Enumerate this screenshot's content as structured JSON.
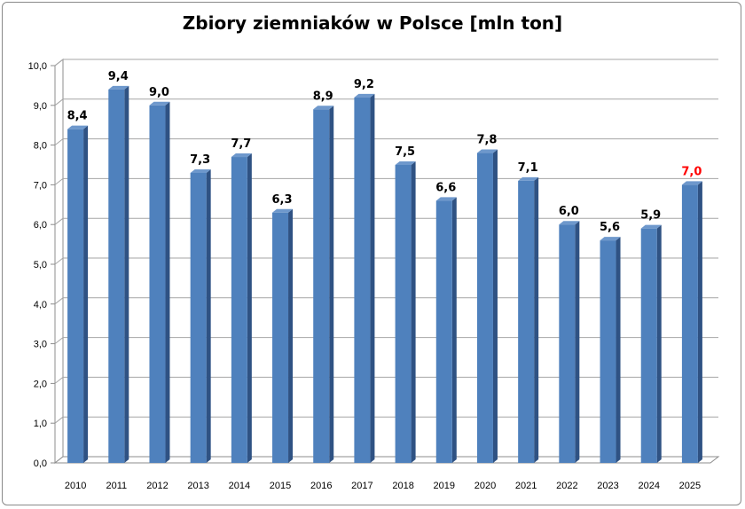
{
  "chart_data": {
    "type": "bar",
    "title": "Zbiory ziemniaków w Polsce [mln ton]",
    "xlabel": "",
    "ylabel": "",
    "categories": [
      "2010",
      "2011",
      "2012",
      "2013",
      "2014",
      "2015",
      "2016",
      "2017",
      "2018",
      "2019",
      "2020",
      "2021",
      "2022",
      "2023",
      "2024",
      "2025"
    ],
    "values": [
      8.4,
      9.4,
      9.0,
      7.3,
      7.7,
      6.3,
      8.9,
      9.2,
      7.5,
      6.6,
      7.8,
      7.1,
      6.0,
      5.6,
      5.9,
      7.0
    ],
    "value_labels": [
      "8,4",
      "9,4",
      "9,0",
      "7,3",
      "7,7",
      "6,3",
      "8,9",
      "9,2",
      "7,5",
      "6,6",
      "7,8",
      "7,1",
      "6,0",
      "5,6",
      "5,9",
      "7,0"
    ],
    "ylim": [
      0,
      10
    ],
    "y_ticks": [
      "0,0",
      "1,0",
      "2,0",
      "3,0",
      "4,0",
      "5,0",
      "6,0",
      "7,0",
      "8,0",
      "9,0",
      "10,0"
    ],
    "grid": true,
    "legend": "none",
    "colors": {
      "bar": "#4f81bd",
      "bar_side": "#2f5283",
      "bar_top": "#6e98cc",
      "label": "#000000",
      "highlight_label": "#ff0000",
      "grid": "#a6a6a6"
    },
    "highlight_index": 15
  }
}
